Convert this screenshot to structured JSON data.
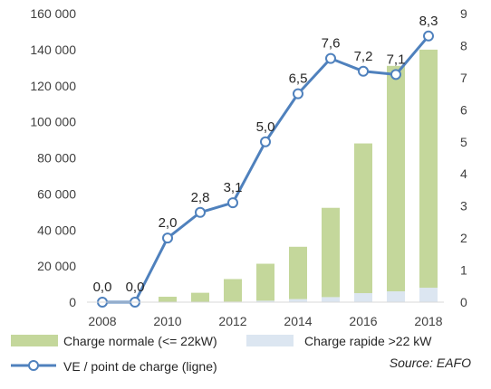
{
  "chart_data": {
    "type": "bar",
    "x": [
      2008,
      2009,
      2010,
      2011,
      2012,
      2013,
      2014,
      2015,
      2016,
      2017,
      2018
    ],
    "x_tick_labels": [
      "2008",
      "2010",
      "2012",
      "2014",
      "2016",
      "2018"
    ],
    "y_left_ticks": [
      "0",
      "20 000",
      "40 000",
      "60 000",
      "80 000",
      "100 000",
      "120 000",
      "140 000",
      "160 000"
    ],
    "y_right_ticks": [
      "0",
      "1",
      "2",
      "3",
      "4",
      "5",
      "6",
      "7",
      "8",
      "9"
    ],
    "ylim_left": [
      0,
      160000
    ],
    "ylim_right": [
      0,
      9
    ],
    "stacked": true,
    "series": [
      {
        "name": "Charge normale (<= 22kW)",
        "type": "bar",
        "axis": "left",
        "color": "#c4d79b",
        "values": [
          0,
          0,
          3000,
          5200,
          12500,
          20500,
          29000,
          49500,
          83000,
          125000,
          132000
        ]
      },
      {
        "name": "Charge rapide >22 kW",
        "type": "bar",
        "axis": "left",
        "color": "#dce6f1",
        "values": [
          0,
          0,
          0,
          0,
          300,
          800,
          1700,
          2800,
          5000,
          6000,
          8000
        ]
      },
      {
        "name": "VE / point de charge (ligne)",
        "type": "line",
        "axis": "right",
        "color": "#4f81bd",
        "marker_fill": "#ffffff",
        "values": [
          0.0,
          0.0,
          2.0,
          2.8,
          3.1,
          5.0,
          6.5,
          7.6,
          7.2,
          7.1,
          8.3
        ],
        "data_labels": [
          "0,0",
          "0,0",
          "2,0",
          "2,8",
          "3,1",
          "5,0",
          "6,5",
          "7,6",
          "7,2",
          "7,1",
          "8,3"
        ]
      }
    ],
    "legend": {
      "position": "bottom",
      "source": "Source: EAFO"
    },
    "grid": false
  }
}
